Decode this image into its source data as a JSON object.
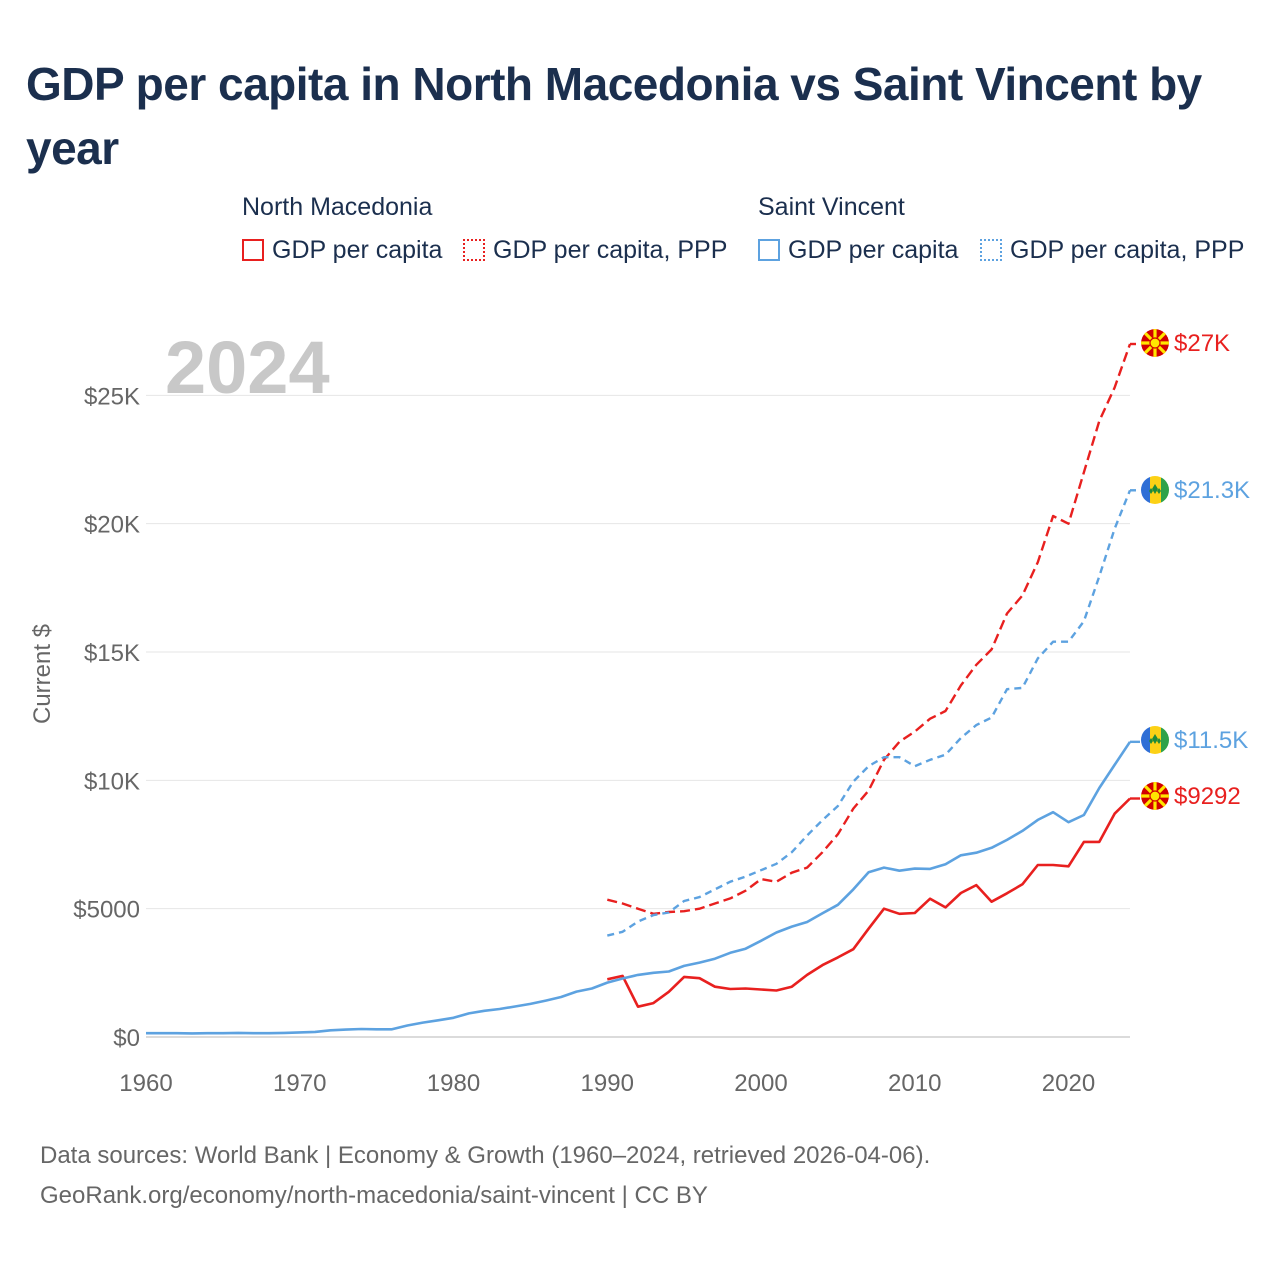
{
  "title": "GDP per capita in North Macedonia vs Saint Vincent by year",
  "legend": {
    "groups": [
      {
        "name": "North Macedonia",
        "color": "#e8201f",
        "items": [
          {
            "label": "GDP per capita",
            "style": "solid"
          },
          {
            "label": "GDP per capita, PPP",
            "style": "dotted"
          }
        ]
      },
      {
        "name": "Saint Vincent",
        "color": "#5da2e0",
        "items": [
          {
            "label": "GDP per capita",
            "style": "solid"
          },
          {
            "label": "GDP per capita, PPP",
            "style": "dotted"
          }
        ]
      }
    ]
  },
  "chart_data": {
    "type": "line",
    "year_watermark": "2024",
    "ylabel": "Current $",
    "xlim": [
      1960,
      2024
    ],
    "ylim": [
      0,
      27000
    ],
    "x_ticks": [
      1960,
      1970,
      1980,
      1990,
      2000,
      2010,
      2020
    ],
    "y_ticks": [
      {
        "value": 0,
        "label": "$0"
      },
      {
        "value": 5000,
        "label": "$5000"
      },
      {
        "value": 10000,
        "label": "$10K"
      },
      {
        "value": 15000,
        "label": "$15K"
      },
      {
        "value": 20000,
        "label": "$20K"
      },
      {
        "value": 25000,
        "label": "$25K"
      }
    ],
    "series": [
      {
        "id": "mk-gdp",
        "name": "North Macedonia GDP per capita",
        "color": "#e8201f",
        "dash": "solid",
        "start_year": 1990,
        "values": [
          2250,
          2380,
          1180,
          1320,
          1760,
          2340,
          2290,
          1960,
          1870,
          1890,
          1850,
          1810,
          1960,
          2420,
          2800,
          3100,
          3420,
          4220,
          5000,
          4800,
          4830,
          5390,
          5050,
          5610,
          5920,
          5270,
          5600,
          5950,
          6700,
          6700,
          6650,
          7600,
          7600,
          8700,
          9292
        ],
        "end_label": "$9292"
      },
      {
        "id": "mk-ppp",
        "name": "North Macedonia GDP per capita, PPP",
        "color": "#e8201f",
        "dash": "dashed",
        "start_year": 1990,
        "values": [
          5350,
          5200,
          5000,
          4800,
          4870,
          4900,
          5000,
          5200,
          5400,
          5700,
          6150,
          6050,
          6400,
          6600,
          7200,
          7900,
          8900,
          9600,
          10800,
          11500,
          11900,
          12400,
          12700,
          13700,
          14500,
          15100,
          16500,
          17200,
          18500,
          20300,
          20000,
          22000,
          24000,
          25300,
          27000
        ],
        "end_label": "$27K"
      },
      {
        "id": "vc-gdp",
        "name": "Saint Vincent GDP per capita",
        "color": "#5da2e0",
        "dash": "solid",
        "start_year": 1960,
        "values": [
          150,
          150,
          150,
          140,
          150,
          150,
          160,
          150,
          150,
          160,
          180,
          200,
          260,
          290,
          310,
          300,
          300,
          450,
          560,
          650,
          750,
          920,
          1020,
          1090,
          1190,
          1290,
          1420,
          1560,
          1770,
          1890,
          2120,
          2280,
          2420,
          2500,
          2550,
          2770,
          2900,
          3050,
          3280,
          3440,
          3750,
          4070,
          4300,
          4480,
          4820,
          5150,
          5750,
          6420,
          6600,
          6480,
          6560,
          6550,
          6730,
          7080,
          7180,
          7370,
          7680,
          8030,
          8460,
          8760,
          8370,
          8650,
          9700,
          10600,
          11500
        ],
        "end_label": "$11.5K"
      },
      {
        "id": "vc-ppp",
        "name": "Saint Vincent GDP per capita, PPP",
        "color": "#5da2e0",
        "dash": "dashed",
        "start_year": 1990,
        "values": [
          3950,
          4100,
          4500,
          4750,
          4850,
          5300,
          5450,
          5750,
          6050,
          6250,
          6500,
          6750,
          7200,
          7850,
          8450,
          9000,
          9950,
          10550,
          10900,
          10900,
          10550,
          10800,
          11000,
          11650,
          12150,
          12450,
          13550,
          13600,
          14750,
          15400,
          15400,
          16200,
          17950,
          19800,
          21300
        ],
        "end_label": "$21.3K"
      }
    ]
  },
  "footer": {
    "line1": "Data sources: World Bank | Economy & Growth (1960–2024, retrieved 2026-04-06).",
    "line2": "GeoRank.org/economy/north-macedonia/saint-vincent | CC BY"
  }
}
